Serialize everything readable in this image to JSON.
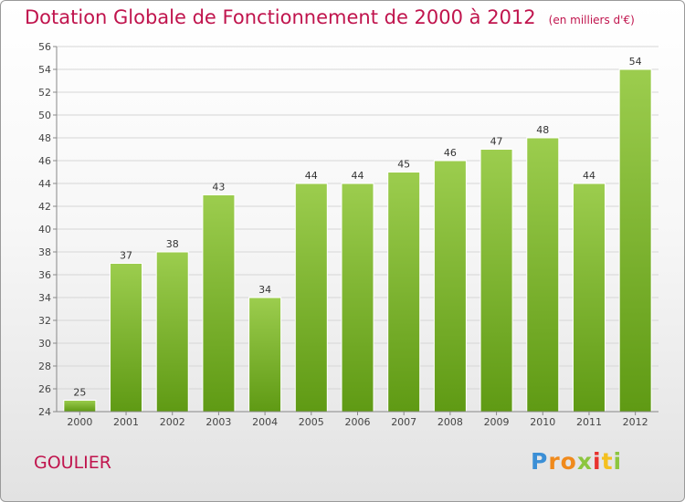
{
  "header": {
    "title": "Dotation Globale de Fonctionnement de 2000 à 2012",
    "unit": "(en milliers d'€)"
  },
  "footer": {
    "commune": "GOULIER",
    "logo_text": "Proxiti"
  },
  "colors": {
    "title": "#c0144d",
    "bar_top": "#9ccd4e",
    "bar_bottom": "#5f9a14",
    "grid": "#d6d6d6"
  },
  "chart_data": {
    "type": "bar",
    "title": "Dotation Globale de Fonctionnement de 2000 à 2012",
    "subtitle": "(en milliers d'€)",
    "xlabel": "",
    "ylabel": "",
    "categories": [
      "2000",
      "2001",
      "2002",
      "2003",
      "2004",
      "2005",
      "2006",
      "2007",
      "2008",
      "2009",
      "2010",
      "2011",
      "2012"
    ],
    "values": [
      25,
      37,
      38,
      43,
      34,
      44,
      44,
      45,
      46,
      47,
      48,
      44,
      54
    ],
    "ylim": [
      24,
      56
    ],
    "yticks": [
      24,
      26,
      28,
      30,
      32,
      34,
      36,
      38,
      40,
      42,
      44,
      46,
      48,
      50,
      52,
      54,
      56
    ],
    "grid": true,
    "data_labels": true
  }
}
